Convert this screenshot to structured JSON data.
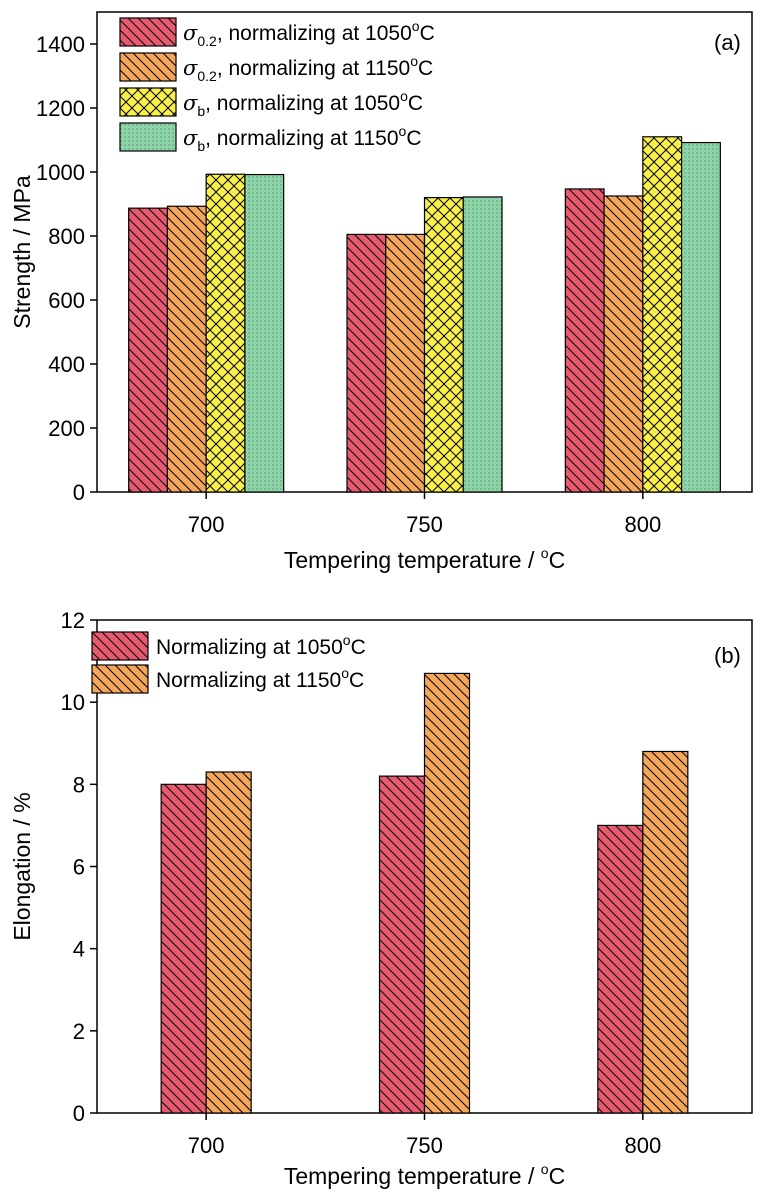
{
  "chart_data": [
    {
      "type": "bar",
      "panel_label": "(a)",
      "categories": [
        "700",
        "750",
        "800"
      ],
      "xlabel": {
        "text": "Tempering temperature / ",
        "sup": "o",
        "tail": "C"
      },
      "ylabel": "Strength / MPa",
      "ylim": [
        0,
        1500
      ],
      "yticks": [
        "0",
        "200",
        "400",
        "600",
        "800",
        "1000",
        "1200",
        "1400"
      ],
      "legend_position": "top-left",
      "series": [
        {
          "key": "s02_1050",
          "symbol": "σ",
          "sub": "0.2",
          "text": ", normalizing at 1050",
          "sup": "o",
          "tail": "C",
          "color": "#E85A70",
          "pattern": "diag-back",
          "values": [
            887,
            805,
            947
          ]
        },
        {
          "key": "s02_1150",
          "symbol": "σ",
          "sub": "0.2",
          "text": ", normalizing at 1150",
          "sup": "o",
          "tail": "C",
          "color": "#F4A65A",
          "pattern": "diag-back",
          "values": [
            893,
            805,
            925
          ]
        },
        {
          "key": "sb_1050",
          "symbol": "σ",
          "sub": "b",
          "text": ", normalizing at 1050",
          "sup": "o",
          "tail": "C",
          "color": "#FAF04A",
          "pattern": "crosshatch",
          "values": [
            993,
            920,
            1110
          ]
        },
        {
          "key": "sb_1150",
          "symbol": "σ",
          "sub": "b",
          "text": ", normalizing at 1150",
          "sup": "o",
          "tail": "C",
          "color": "#8FD3A8",
          "pattern": "dots",
          "values": [
            992,
            922,
            1092
          ]
        }
      ]
    },
    {
      "type": "bar",
      "panel_label": "(b)",
      "categories": [
        "700",
        "750",
        "800"
      ],
      "xlabel": {
        "text": "Tempering temperature / ",
        "sup": "o",
        "tail": "C"
      },
      "ylabel": "Elongation / %",
      "ylim": [
        0,
        12
      ],
      "yticks": [
        "0",
        "2",
        "4",
        "6",
        "8",
        "10",
        "12"
      ],
      "legend_position": "top-left",
      "series": [
        {
          "key": "el_1050",
          "text": "Normalizing at 1050",
          "sup": "o",
          "tail": "C",
          "color": "#E85A70",
          "pattern": "diag-back",
          "values": [
            8.0,
            8.2,
            7.0
          ]
        },
        {
          "key": "el_1150",
          "text": "Normalizing at 1150",
          "sup": "o",
          "tail": "C",
          "color": "#F4A65A",
          "pattern": "diag-back",
          "values": [
            8.3,
            10.7,
            8.8
          ]
        }
      ]
    }
  ]
}
